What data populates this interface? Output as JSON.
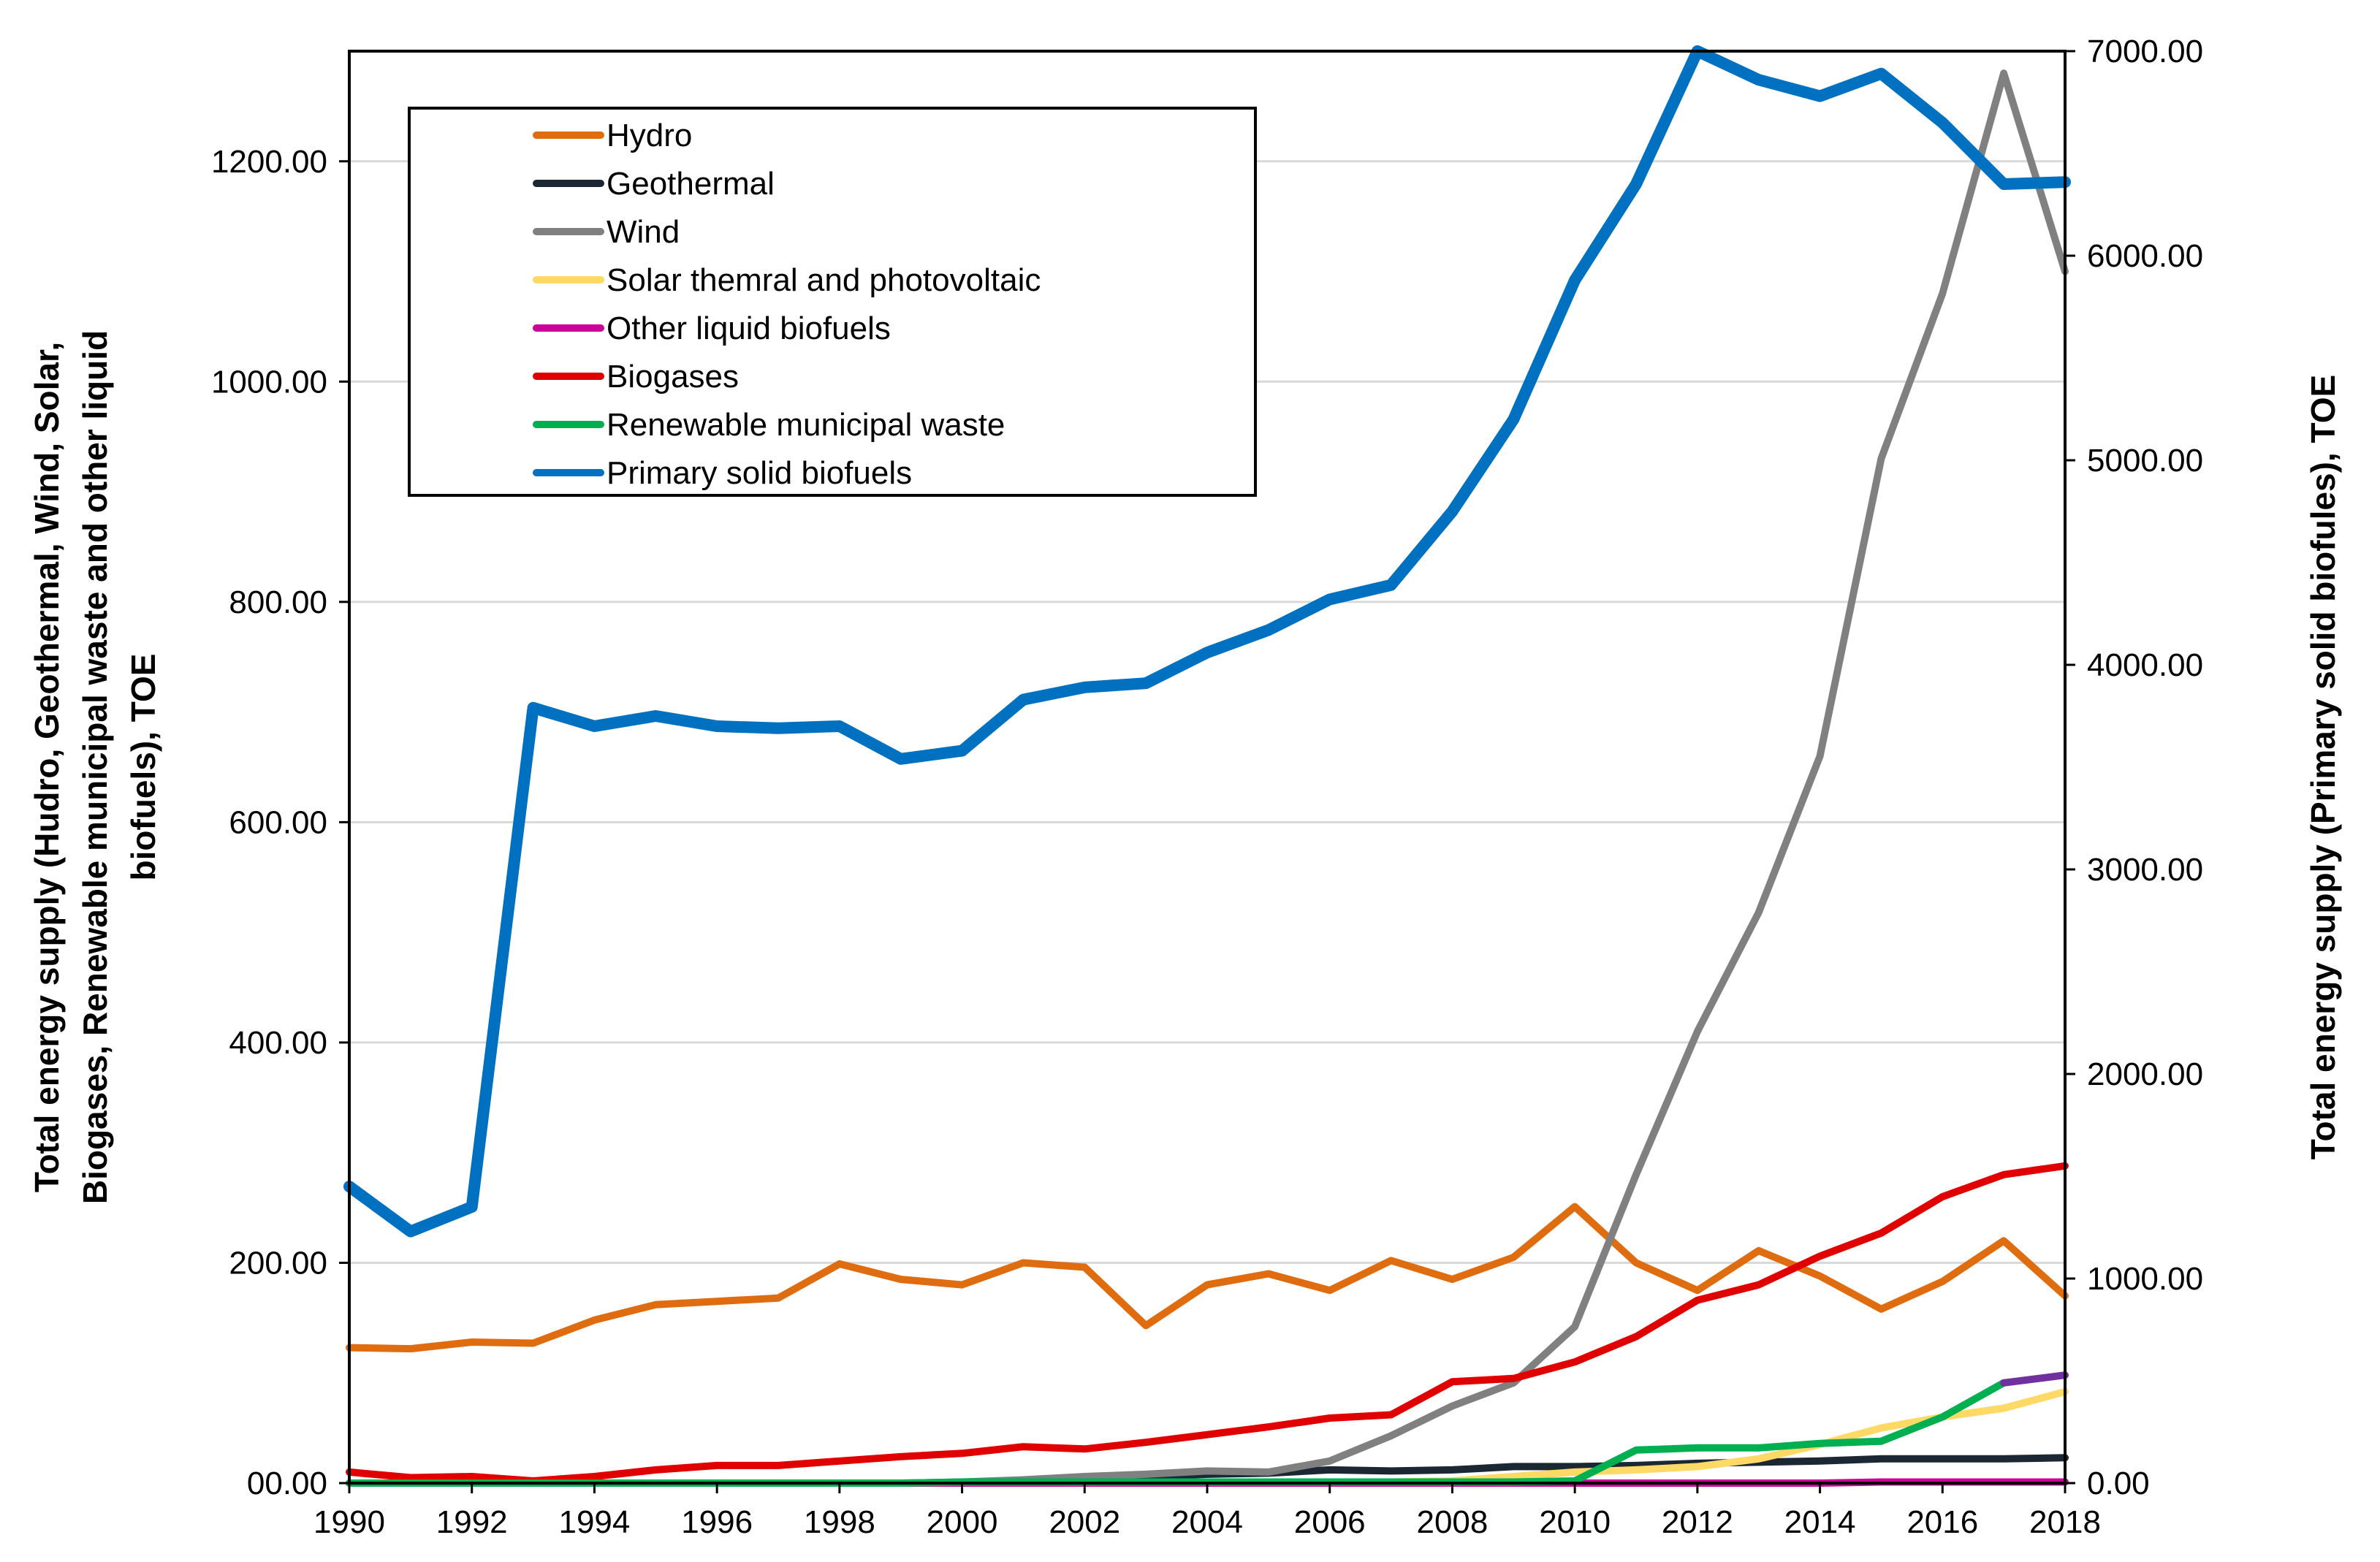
{
  "chart_data": {
    "type": "line",
    "title": "",
    "xlabel": "",
    "ylabel_left": "Total energy supply (Hudro, Geothermal, Wind, Solar, Biogases, Renewable municipal waste and other liquid biofuels), TOE",
    "ylabel_left_lines": [
      "Total energy supply (Hudro, Geothermal, Wind, Solar,",
      "Biogases, Renewable municipal waste and other liquid",
      "biofuels), TOE"
    ],
    "ylabel_right": "Total energy supply (Primary solid biofules), TOE",
    "ylim_left": [
      0,
      1300
    ],
    "ylim_right": [
      0,
      7000
    ],
    "yticks_left": [
      "00.00",
      "200.00",
      "400.00",
      "600.00",
      "800.00",
      "1000.00",
      "1200.00"
    ],
    "yticks_left_values": [
      0,
      200,
      400,
      600,
      800,
      1000,
      1200
    ],
    "yticks_right": [
      "0.00",
      "1000.00",
      "2000.00",
      "3000.00",
      "4000.00",
      "5000.00",
      "6000.00",
      "7000.00"
    ],
    "yticks_right_values": [
      0,
      1000,
      2000,
      3000,
      4000,
      5000,
      6000,
      7000
    ],
    "xlim": [
      1990,
      2018
    ],
    "xticks": [
      "1990",
      "1992",
      "1994",
      "1996",
      "1998",
      "2000",
      "2002",
      "2004",
      "2006",
      "2008",
      "2010",
      "2012",
      "2014",
      "2016",
      "2018"
    ],
    "xticks_values": [
      1990,
      1992,
      1994,
      1996,
      1998,
      2000,
      2002,
      2004,
      2006,
      2008,
      2010,
      2012,
      2014,
      2016,
      2018
    ],
    "grid": "horizontal",
    "legend_position": "top-left",
    "x": [
      1990,
      1991,
      1992,
      1993,
      1994,
      1995,
      1996,
      1997,
      1998,
      1999,
      2000,
      2001,
      2002,
      2003,
      2004,
      2005,
      2006,
      2007,
      2008,
      2009,
      2010,
      2011,
      2012,
      2013,
      2014,
      2015,
      2016,
      2017,
      2018
    ],
    "series": [
      {
        "name": "Hydro",
        "axis": "left",
        "color": "#e06c10",
        "values": [
          123,
          122,
          128,
          127,
          148,
          162,
          165,
          168,
          199,
          185,
          180,
          200,
          196,
          143,
          180,
          190,
          175,
          202,
          185,
          205,
          251,
          200,
          175,
          211,
          188,
          158,
          183,
          220,
          170
        ]
      },
      {
        "name": "Geothermal",
        "axis": "left",
        "color": "#1b2733",
        "values": [
          0,
          0,
          0,
          0,
          0,
          0,
          0,
          0,
          0,
          0,
          0,
          2,
          5,
          6,
          8,
          9,
          12,
          11,
          12,
          15,
          15,
          16,
          18,
          19,
          20,
          22,
          22,
          22,
          23
        ]
      },
      {
        "name": "Wind",
        "axis": "left",
        "color": "#808080",
        "values": [
          0,
          0,
          0,
          0,
          0,
          0,
          0,
          0,
          0,
          0,
          1,
          3,
          6,
          8,
          11,
          10,
          20,
          43,
          70,
          91,
          142,
          280,
          410,
          518,
          660,
          930,
          1080,
          1280,
          1100
        ]
      },
      {
        "name": "Solar themral and photovoltaic",
        "axis": "left",
        "color": "#ffd966",
        "values": [
          0,
          0,
          0,
          0,
          0,
          0,
          0,
          0,
          0,
          0,
          0,
          0,
          0,
          0,
          0,
          0,
          0,
          1,
          2,
          6,
          10,
          12,
          15,
          22,
          35,
          50,
          60,
          68,
          83
        ]
      },
      {
        "name": "Other liquid biofuels",
        "axis": "left",
        "color": "#cc0099",
        "values": [
          0,
          0,
          0,
          0,
          0,
          0,
          0,
          0,
          0,
          0,
          0,
          0,
          0,
          0,
          0,
          0,
          0,
          0,
          0,
          0,
          0,
          0,
          0,
          0,
          0,
          1,
          1,
          1,
          1
        ]
      },
      {
        "name": "Biogases",
        "axis": "left",
        "color": "#e00000",
        "values": [
          10,
          5,
          6,
          2,
          6,
          12,
          16,
          16,
          20,
          24,
          27,
          33,
          31,
          37,
          44,
          51,
          59,
          62,
          92,
          95,
          110,
          133,
          166,
          180,
          206,
          227,
          260,
          280,
          288
        ]
      },
      {
        "name": "Renewable municipal waste",
        "axis": "left",
        "color": "#00b050",
        "values": [
          0,
          0,
          0,
          0,
          0,
          0,
          0,
          0,
          0,
          0,
          1,
          1,
          1,
          1,
          1,
          1,
          1,
          1,
          1,
          1,
          2,
          30,
          32,
          32,
          36,
          38,
          60,
          91,
          null
        ]
      },
      {
        "name": "",
        "axis": "left",
        "color": "#7030a0",
        "values": [
          null,
          null,
          null,
          null,
          null,
          null,
          null,
          null,
          null,
          null,
          null,
          null,
          null,
          null,
          null,
          null,
          null,
          null,
          null,
          null,
          null,
          null,
          null,
          null,
          null,
          null,
          null,
          91,
          98
        ]
      },
      {
        "name": "Primary solid biofuels",
        "axis": "right",
        "color": "#0070c0",
        "values": [
          1450,
          1230,
          1350,
          3790,
          3700,
          3750,
          3700,
          3690,
          3700,
          3540,
          3580,
          3830,
          3890,
          3910,
          4060,
          4170,
          4320,
          4390,
          4750,
          5200,
          5880,
          6350,
          7000,
          6860,
          6780,
          6890,
          6650,
          6350,
          6360
        ]
      }
    ]
  }
}
